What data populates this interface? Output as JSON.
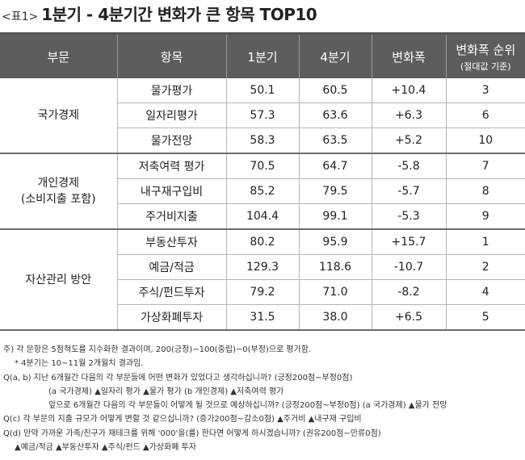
{
  "title": {
    "tag": "<표1>",
    "main": "1분기 - 4분기간 변화가 큰 항목 TOP10"
  },
  "table": {
    "headers": {
      "category": "부문",
      "item": "항목",
      "q1": "1분기",
      "q4": "4분기",
      "change": "변화폭",
      "rank": "변화폭 순위",
      "rank_sub": "(절대값 기준)"
    },
    "groups": [
      {
        "name": "국가경제",
        "rows": [
          {
            "item": "물가평가",
            "q1": "50.1",
            "q4": "60.5",
            "change": "+10.4",
            "rank": "3"
          },
          {
            "item": "일자리평가",
            "q1": "57.3",
            "q4": "63.6",
            "change": "+6.3",
            "rank": "6"
          },
          {
            "item": "물가전망",
            "q1": "58.3",
            "q4": "63.5",
            "change": "+5.2",
            "rank": "10"
          }
        ]
      },
      {
        "name": "개인경제",
        "name2": "(소비지출 포함)",
        "rows": [
          {
            "item": "저축여력 평가",
            "q1": "70.5",
            "q4": "64.7",
            "change": "-5.8",
            "rank": "7"
          },
          {
            "item": "내구재구입비",
            "q1": "85.2",
            "q4": "79.5",
            "change": "-5.7",
            "rank": "8"
          },
          {
            "item": "주거비지출",
            "q1": "104.4",
            "q4": "99.1",
            "change": "-5.3",
            "rank": "9"
          }
        ]
      },
      {
        "name": "자산관리 방안",
        "rows": [
          {
            "item": "부동산투자",
            "q1": "80.2",
            "q4": "95.9",
            "change": "+15.7",
            "rank": "1"
          },
          {
            "item": "예금/적금",
            "q1": "129.3",
            "q4": "118.6",
            "change": "-10.7",
            "rank": "2"
          },
          {
            "item": "주식/펀드투자",
            "q1": "79.2",
            "q4": "71.0",
            "change": "-8.2",
            "rank": "4"
          },
          {
            "item": "가상화폐투자",
            "q1": "31.5",
            "q4": "38.0",
            "change": "+6.5",
            "rank": "5"
          }
        ]
      }
    ]
  },
  "notes": [
    "주) 각 문항은 5점척도를 지수화한 결과이며, 200(긍정)~100(중립)~0(부정)으로 평가함.",
    "* 4분기는 10~11월 2개월치 결과임.",
    "Q(a, b) 지난 6개월간 다음의 각 부문들에 어떤 변화가 있었다고 생각하십니까? (긍정200점~부정0점)",
    "(a 국가경제) ▲일자리 평가 ▲물가 평가 (b 개인경제) ▲저축여력 평가",
    "앞으로 6개월간 다음의 각 부문들이 어떻게 될 것으로 예상하십니까? (긍정200점~부정0점) (a 국가경제) ▲물가 전망",
    "Q(c) 각 부문의 지출 규모가 어떻게 변할 것 같으십니까? (증가200점~감소0점) ▲주거비 ▲내구재 구입비",
    "Q(d) 만약 가까운 가족/친구가 재테크를 위해 '000'을(를) 한다면 어떻게 하시겠습니까? (권유200점~만류0점)",
    "▲예금/적금 ▲부동산투자 ▲주식/펀드 ▲가상화폐 투자"
  ]
}
